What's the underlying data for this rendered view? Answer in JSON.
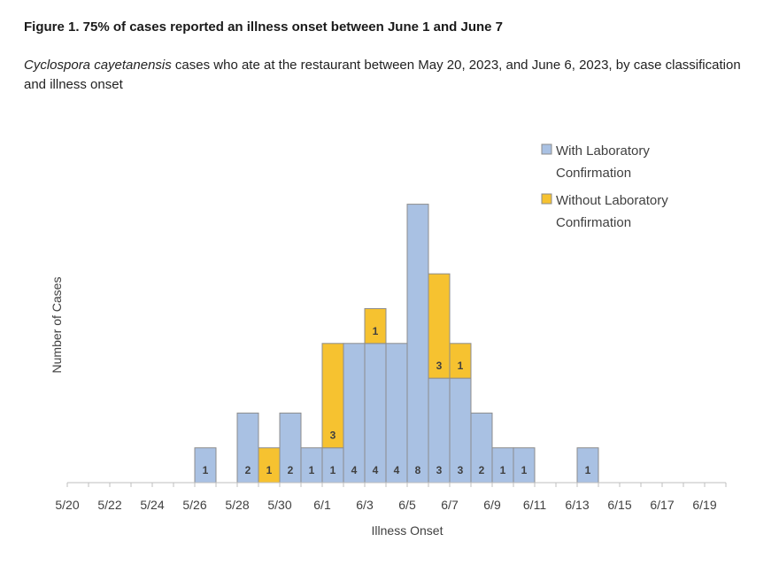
{
  "figure": {
    "title": "Figure 1.  75% of cases reported an illness onset between June 1 and June 7",
    "subtitle_italic": "Cyclospora cayetanensis",
    "subtitle_rest": " cases who ate at the restaurant between May 20, 2023, and June 6, 2023, by case classification and illness onset"
  },
  "chart_data": {
    "type": "bar",
    "stacked": true,
    "xlabel": "Illness Onset",
    "ylabel": "Number of Cases",
    "ylim": [
      0,
      8
    ],
    "grid": false,
    "legend_position": "top-right",
    "categories": [
      "5/20",
      "5/21",
      "5/22",
      "5/23",
      "5/24",
      "5/25",
      "5/26",
      "5/27",
      "5/28",
      "5/29",
      "5/30",
      "5/31",
      "6/1",
      "6/2",
      "6/3",
      "6/4",
      "6/5",
      "6/6",
      "6/7",
      "6/8",
      "6/9",
      "6/10",
      "6/11",
      "6/12",
      "6/13",
      "6/14",
      "6/15",
      "6/16",
      "6/17",
      "6/18",
      "6/19",
      "6/20"
    ],
    "tick_labels": [
      "5/20",
      "5/22",
      "5/24",
      "5/26",
      "5/28",
      "5/30",
      "6/1",
      "6/3",
      "6/5",
      "6/7",
      "6/9",
      "6/11",
      "6/13",
      "6/15",
      "6/17",
      "6/19"
    ],
    "series": [
      {
        "name": "With Laboratory Confirmation",
        "color": "#a9c1e3",
        "values": [
          0,
          0,
          0,
          0,
          0,
          0,
          1,
          0,
          2,
          0,
          2,
          1,
          1,
          4,
          4,
          4,
          8,
          3,
          3,
          2,
          1,
          1,
          0,
          0,
          1,
          0,
          0,
          0,
          0,
          0,
          0,
          0
        ]
      },
      {
        "name": "Without Laboratory Confirmation",
        "color": "#f6c230",
        "values": [
          0,
          0,
          0,
          0,
          0,
          0,
          0,
          0,
          0,
          1,
          0,
          0,
          3,
          0,
          1,
          0,
          0,
          3,
          1,
          0,
          0,
          0,
          0,
          0,
          0,
          0,
          0,
          0,
          0,
          0,
          0,
          0
        ]
      }
    ],
    "legend": [
      {
        "line1": "With Laboratory",
        "line2": "Confirmation",
        "color": "#a9c1e3"
      },
      {
        "line1": "Without Laboratory",
        "line2": "Confirmation",
        "color": "#f6c230"
      }
    ]
  }
}
